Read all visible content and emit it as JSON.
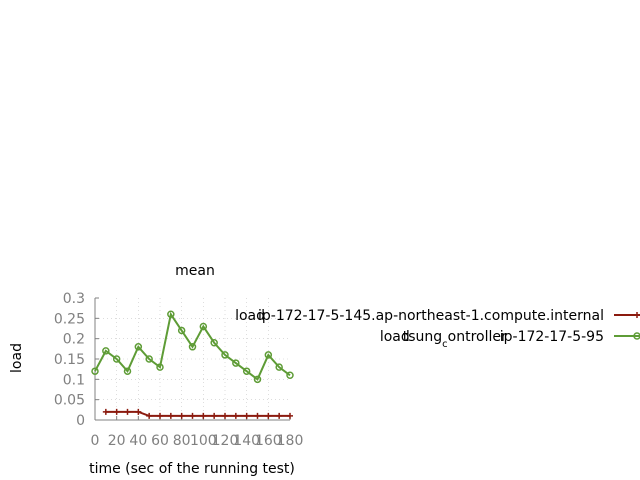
{
  "chart_data": {
    "type": "line",
    "title": "mean",
    "xlabel": "time (sec of the running test)",
    "ylabel": "load",
    "xlim": [
      0,
      180
    ],
    "ylim": [
      0,
      0.3
    ],
    "xticks": [
      "0",
      "20",
      "40",
      "60",
      "80",
      "100",
      "120",
      "140",
      "160",
      "180"
    ],
    "yticks": [
      "0",
      "0.05",
      "0.1",
      "0.15",
      "0.2",
      "0.25",
      "0.3"
    ],
    "grid": true,
    "legend_position": "right",
    "series": [
      {
        "name": "loadip-172-17-5-145.ap-northeast-1.compute.internal",
        "name_parts": [
          {
            "text": "load",
            "dx": 0,
            "sub": false
          },
          {
            "text": "ip-172-17-5-145.ap-northeast-1.compute.internal",
            "dx": -0.5,
            "sub": false
          }
        ],
        "color": "#8b1a0e",
        "marker": "plus",
        "x": [
          0,
          10,
          20,
          30,
          40,
          50,
          60,
          70,
          80,
          90,
          100,
          110,
          120,
          130,
          140,
          150,
          160,
          170,
          180
        ],
        "y": [
          null,
          0.02,
          0.02,
          0.02,
          0.02,
          0.01,
          0.01,
          0.01,
          0.01,
          0.01,
          0.01,
          0.01,
          0.01,
          0.01,
          0.01,
          0.01,
          0.01,
          0.01,
          0.01
        ]
      },
      {
        "name": "loadtsung_controllerip-172-17-5-95",
        "name_parts": [
          {
            "text": "load",
            "dx": 0,
            "sub": false
          },
          {
            "text": "tsung",
            "dx": -0.5,
            "sub": false
          },
          {
            "text": "c",
            "dx": 0,
            "sub": true
          },
          {
            "text": "ontroller",
            "dx": 0,
            "sub": false
          },
          {
            "text": "ip-172-17-5-95",
            "dx": -0.5,
            "sub": false
          }
        ],
        "color": "#5e9c36",
        "marker": "circle",
        "x": [
          0,
          10,
          20,
          30,
          40,
          50,
          60,
          70,
          80,
          90,
          100,
          110,
          120,
          130,
          140,
          150,
          160,
          170,
          180
        ],
        "y": [
          0.12,
          0.17,
          0.15,
          0.12,
          0.18,
          0.15,
          0.13,
          0.26,
          0.22,
          0.18,
          0.23,
          0.19,
          0.16,
          0.14,
          0.12,
          0.1,
          0.16,
          0.13,
          0.11
        ]
      }
    ]
  }
}
